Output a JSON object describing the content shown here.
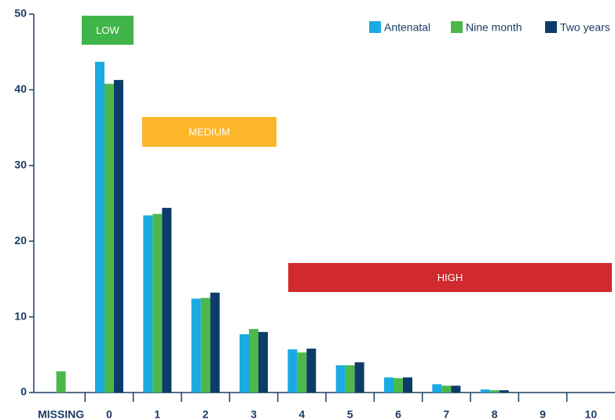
{
  "chart_data": {
    "type": "bar",
    "categories": [
      "MISSING",
      "0",
      "1",
      "2",
      "3",
      "4",
      "5",
      "6",
      "7",
      "8",
      "9",
      "10"
    ],
    "series": [
      {
        "name": "Antenatal",
        "color": "#1aaae2",
        "values": [
          null,
          43.7,
          23.4,
          12.4,
          7.7,
          5.7,
          3.6,
          2.0,
          1.1,
          0.4,
          0,
          0
        ]
      },
      {
        "name": "Nine month",
        "color": "#4cb84c",
        "values": [
          2.8,
          40.8,
          23.6,
          12.5,
          8.4,
          5.3,
          3.6,
          1.9,
          0.9,
          0.3,
          0,
          0
        ]
      },
      {
        "name": "Two years",
        "color": "#0e3c6a",
        "values": [
          null,
          41.3,
          24.4,
          13.2,
          8.0,
          5.8,
          4.0,
          2.0,
          0.9,
          0.3,
          0,
          0
        ]
      }
    ],
    "ylim": [
      0,
      50
    ],
    "yticks": [
      0,
      10,
      20,
      30,
      40,
      50
    ],
    "legend": "top-right",
    "annotations": [
      {
        "text": "LOW",
        "color": "#3fb549"
      },
      {
        "text": "MEDIUM",
        "color": "#fbb62a"
      },
      {
        "text": "HIGH",
        "color": "#d02a2e"
      }
    ]
  }
}
